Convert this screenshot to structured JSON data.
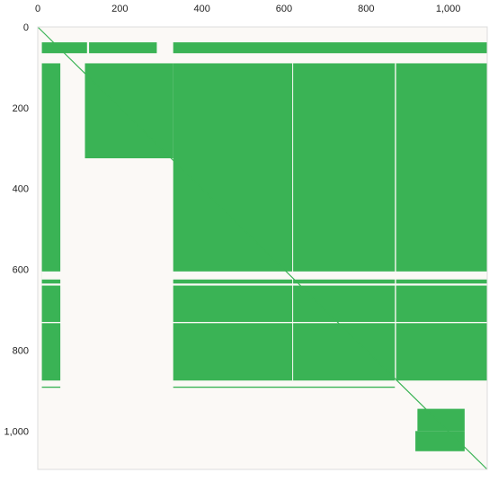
{
  "chart_data": {
    "type": "heatmap",
    "subtype": "sparsity-matrix",
    "title": "",
    "xlabel": "",
    "ylabel": "",
    "x_axis_position": "top",
    "xlim": [
      0,
      1095
    ],
    "ylim": [
      0,
      1095
    ],
    "x_ticks": [
      0,
      200,
      400,
      600,
      800,
      1000
    ],
    "x_tick_labels": [
      "0",
      "200",
      "400",
      "600",
      "800",
      "1,000"
    ],
    "y_ticks": [
      0,
      200,
      400,
      600,
      800,
      1000
    ],
    "y_tick_labels": [
      "0",
      "200",
      "400",
      "600",
      "800",
      "1,000"
    ],
    "grid": false,
    "colors": {
      "background": "#fbf9f6",
      "filled": "#3ab355"
    },
    "filled_regions": [
      {
        "name": "band-top-left",
        "x": [
          10,
          120
        ],
        "y": [
          38,
          65
        ]
      },
      {
        "name": "band-top-mid",
        "x": [
          125,
          290
        ],
        "y": [
          38,
          65
        ]
      },
      {
        "name": "band-top-right",
        "x": [
          330,
          1095
        ],
        "y": [
          38,
          65
        ]
      },
      {
        "name": "left-column",
        "x": [
          10,
          55
        ],
        "y": [
          90,
          875
        ]
      },
      {
        "name": "upper-block",
        "x": [
          115,
          330
        ],
        "y": [
          90,
          325
        ]
      },
      {
        "name": "main-block",
        "x": [
          330,
          1095
        ],
        "y": [
          90,
          875
        ]
      },
      {
        "name": "small-diag-block",
        "x": [
          925,
          1040
        ],
        "y": [
          945,
          1000
        ]
      },
      {
        "name": "small-box",
        "x": [
          920,
          1040
        ],
        "y": [
          1000,
          1050
        ]
      }
    ],
    "gaps": {
      "rows": [
        [
          605,
          625
        ],
        [
          635,
          640
        ],
        [
          730,
          733
        ]
      ],
      "cols": [
        [
          620,
          622
        ],
        [
          870,
          873
        ]
      ]
    },
    "edge_lines": [
      {
        "name": "row-890",
        "x": [
          10,
          55
        ],
        "y": [
          890,
          893
        ]
      },
      {
        "name": "row-890-right",
        "x": [
          330,
          870
        ],
        "y": [
          890,
          893
        ]
      }
    ],
    "diagonal": {
      "x": [
        0,
        1095
      ],
      "y": [
        0,
        1095
      ]
    }
  }
}
